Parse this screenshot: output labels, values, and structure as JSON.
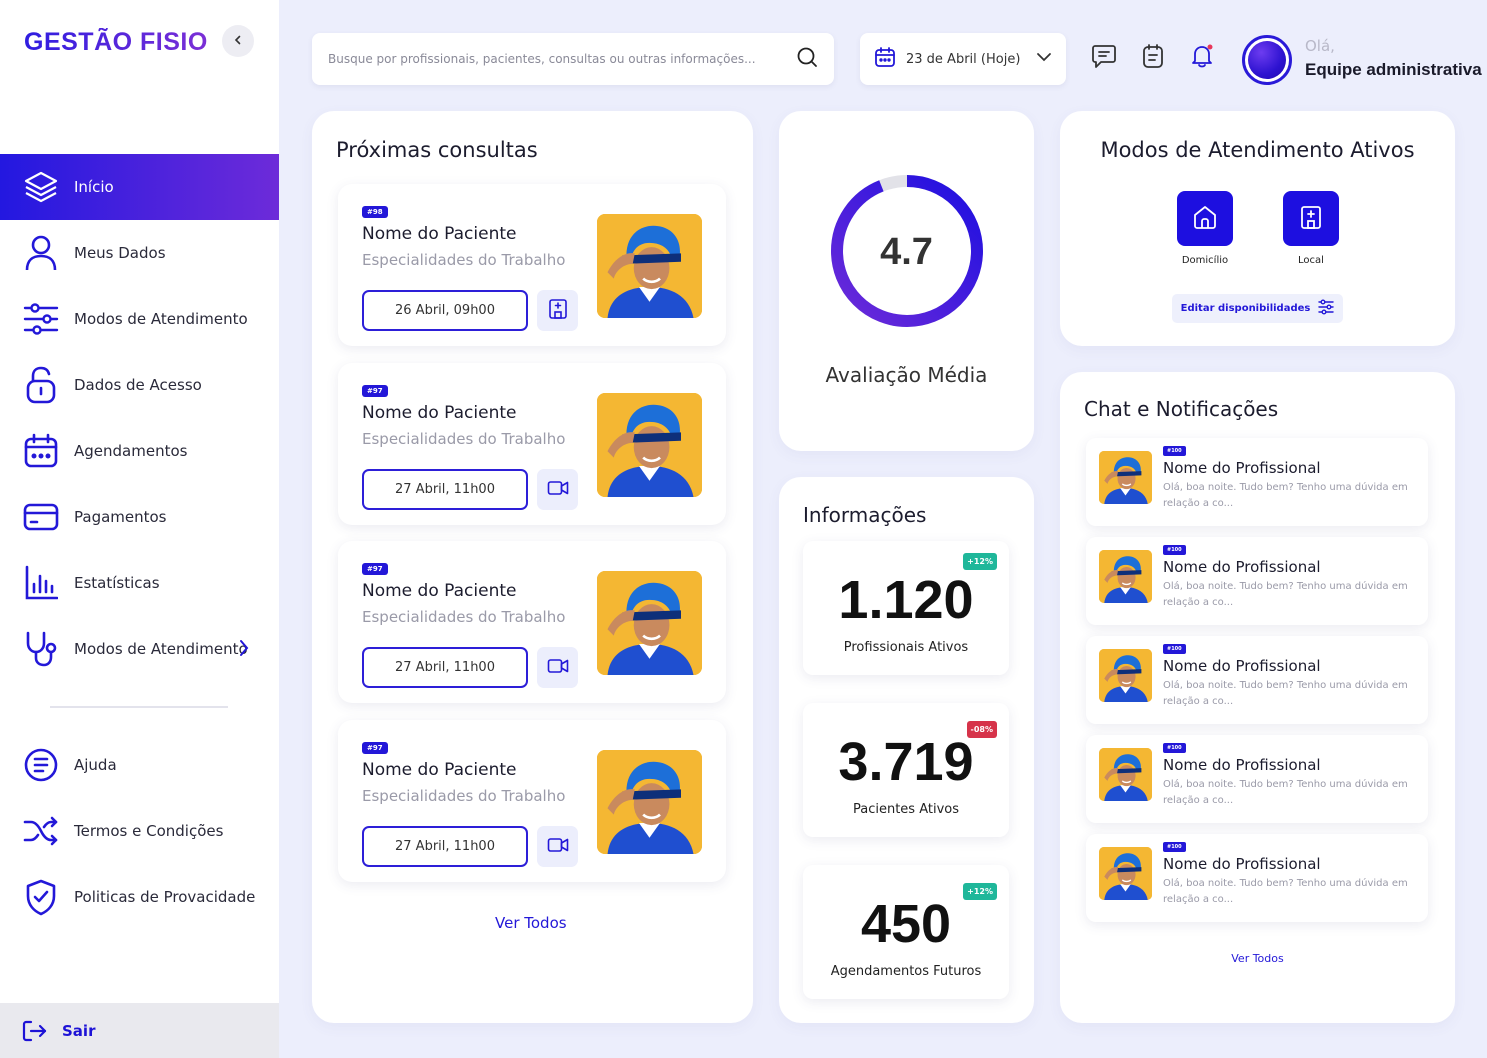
{
  "app": {
    "logo": "GESTÃO FISIO"
  },
  "sidebar": {
    "items": [
      {
        "label": "Início",
        "icon": "layers-icon"
      },
      {
        "label": "Meus Dados",
        "icon": "user-icon"
      },
      {
        "label": "Modos de Atendimento",
        "icon": "sliders-icon"
      },
      {
        "label": "Dados de Acesso",
        "icon": "lock-icon"
      },
      {
        "label": "Agendamentos",
        "icon": "calendar-icon"
      },
      {
        "label": "Pagamentos",
        "icon": "credit-card-icon"
      },
      {
        "label": "Estatísticas",
        "icon": "bar-chart-icon"
      },
      {
        "label": "Modos de Atendimento",
        "icon": "stethoscope-icon"
      }
    ],
    "bottom_items": [
      {
        "label": "Ajuda",
        "icon": "help-list-icon"
      },
      {
        "label": "Termos e Condições",
        "icon": "shuffle-icon"
      },
      {
        "label": "Politicas de Provacidade",
        "icon": "shield-check-icon"
      }
    ],
    "logout_label": "Sair"
  },
  "topbar": {
    "search_placeholder": "Busque por profissionais, pacientes, consultas ou outras informações...",
    "date_label": "23 de Abril (Hoje)",
    "greeting": "Olá,",
    "user_name": "Equipe administrativa"
  },
  "colors": {
    "accent": "#2318d8",
    "accent_purple": "#6d2bd9",
    "positive_badge": "#1fb79a",
    "negative_badge": "#d6334a",
    "background": "#eceefc"
  },
  "appointments": {
    "title": "Próximas consultas",
    "items": [
      {
        "tag": "#98",
        "name": "Nome do Paciente",
        "specialty": "Especialidades do Trabalho",
        "datetime": "26 Abril, 09h00",
        "mode_icon": "building-icon"
      },
      {
        "tag": "#97",
        "name": "Nome do Paciente",
        "specialty": "Especialidades do Trabalho",
        "datetime": "27 Abril, 11h00",
        "mode_icon": "video-icon"
      },
      {
        "tag": "#97",
        "name": "Nome do Paciente",
        "specialty": "Especialidades do Trabalho",
        "datetime": "27 Abril, 11h00",
        "mode_icon": "video-icon"
      },
      {
        "tag": "#97",
        "name": "Nome do Paciente",
        "specialty": "Especialidades do Trabalho",
        "datetime": "27 Abril, 11h00",
        "mode_icon": "video-icon"
      }
    ],
    "see_all": "Ver Todos"
  },
  "rating": {
    "value": "4.7",
    "fraction": 0.94,
    "label": "Avaliação Média"
  },
  "info": {
    "title": "Informações",
    "stats": [
      {
        "value": "1.120",
        "label": "Profissionais Ativos",
        "badge": "+12%",
        "trend": "up"
      },
      {
        "value": "3.719",
        "label": "Pacientes Ativos",
        "badge": "-08%",
        "trend": "down"
      },
      {
        "value": "450",
        "label": "Agendamentos Futuros",
        "badge": "+12%",
        "trend": "up"
      }
    ]
  },
  "modes": {
    "title": "Modos de Atendimento Ativos",
    "items": [
      {
        "label": "Domicílio",
        "icon": "home-icon"
      },
      {
        "label": "Local",
        "icon": "building-icon"
      }
    ],
    "edit_label": "Editar disponibilidades"
  },
  "chat": {
    "title": "Chat e Notificações",
    "items": [
      {
        "tag": "#100",
        "name": "Nome do Profissional",
        "message": "Olá, boa noite. Tudo bem? Tenho uma dúvida em relação a co..."
      },
      {
        "tag": "#100",
        "name": "Nome do Profissional",
        "message": "Olá, boa noite. Tudo bem? Tenho uma dúvida em relação a co..."
      },
      {
        "tag": "#100",
        "name": "Nome do Profissional",
        "message": "Olá, boa noite. Tudo bem? Tenho uma dúvida em relação a co..."
      },
      {
        "tag": "#100",
        "name": "Nome do Profissional",
        "message": "Olá, boa noite. Tudo bem? Tenho uma dúvida em relação a co..."
      },
      {
        "tag": "#100",
        "name": "Nome do Profissional",
        "message": "Olá, boa noite. Tudo bem? Tenho uma dúvida em relação a co..."
      }
    ],
    "see_all": "Ver Todos"
  }
}
